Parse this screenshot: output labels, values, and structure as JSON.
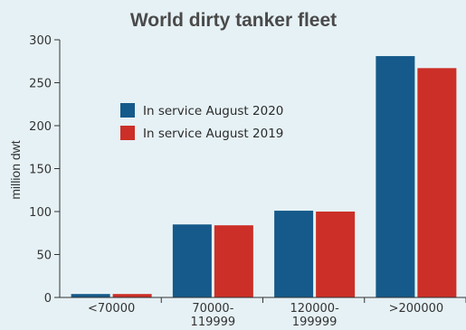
{
  "chart_data": {
    "type": "bar",
    "title": "World dirty tanker fleet",
    "ylabel": "million dwt",
    "xlabel": "",
    "ylim": [
      0,
      300
    ],
    "yticks": [
      0,
      50,
      100,
      150,
      200,
      250,
      300
    ],
    "categories": [
      [
        "<70000"
      ],
      [
        "70000-",
        "119999"
      ],
      [
        "120000-",
        "199999"
      ],
      [
        ">200000"
      ]
    ],
    "series": [
      {
        "name": "In service August 2020",
        "color": "#155a8a",
        "values": [
          4,
          85,
          101,
          281
        ]
      },
      {
        "name": "In service August 2019",
        "color": "#cc2f27",
        "values": [
          4,
          84,
          100,
          267
        ]
      }
    ],
    "legend": "center-left",
    "grid": false
  }
}
